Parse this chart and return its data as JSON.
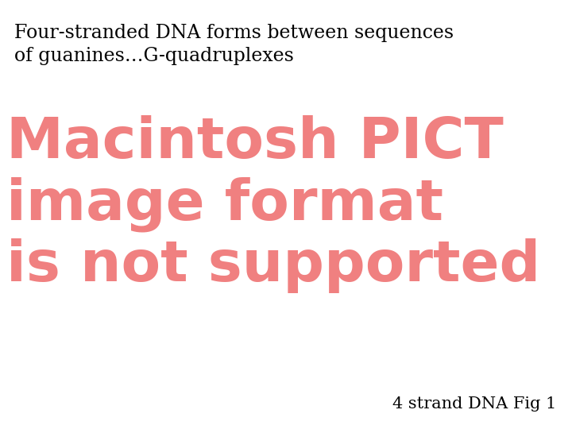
{
  "background_color": "#ffffff",
  "title_text_line1": "Four-stranded DNA forms between sequences",
  "title_text_line2": "of guanines…G-quadruplexes",
  "title_fontsize": 17,
  "title_color": "#000000",
  "title_font": "DejaVu Serif",
  "pict_line1": "Macintosh PICT",
  "pict_line2": "image format",
  "pict_line3": "is not supported",
  "pict_color": "#f08080",
  "pict_fontsize": 52,
  "pict_font": "DejaVu Sans",
  "pict_fontweight": "bold",
  "caption_text": "4 strand DNA Fig 1",
  "caption_fontsize": 15,
  "caption_color": "#000000",
  "caption_font": "DejaVu Serif"
}
